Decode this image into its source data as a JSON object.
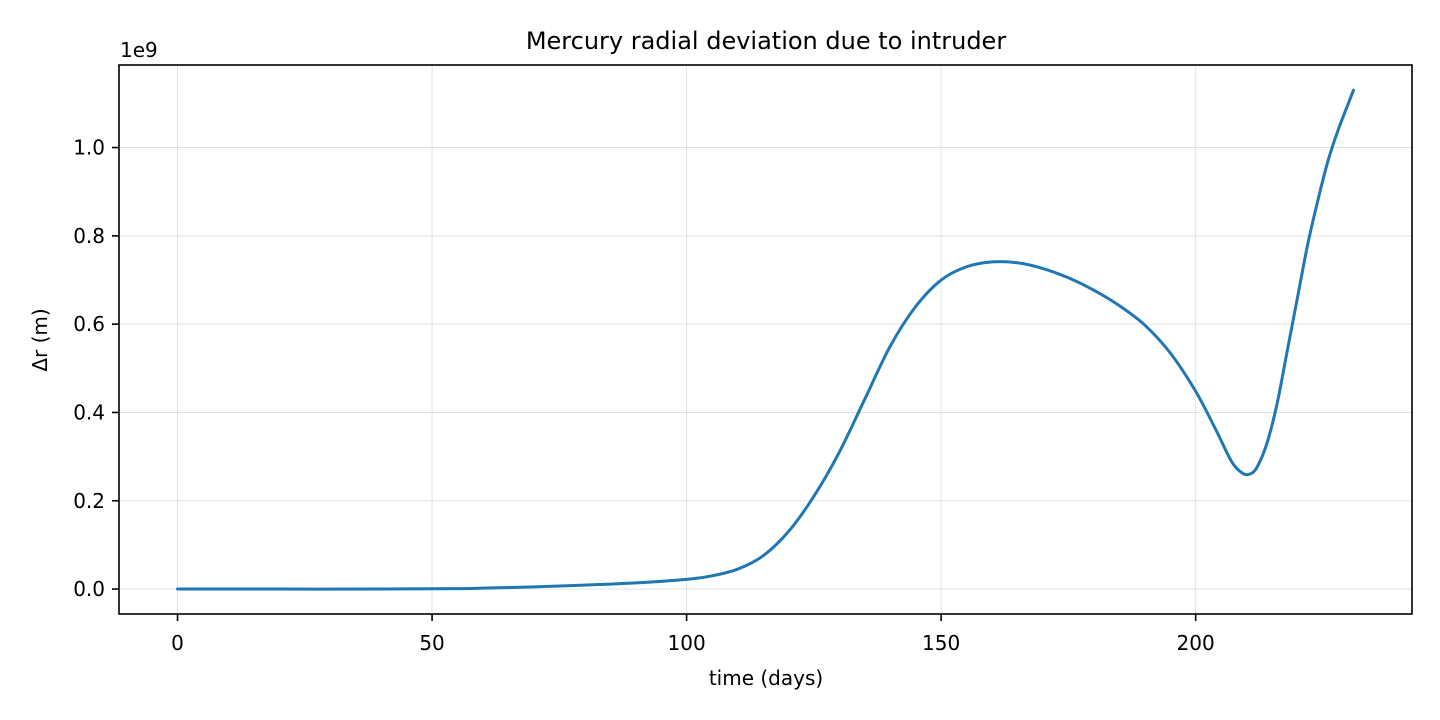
{
  "chart_data": {
    "type": "line",
    "title": "Mercury radial deviation due to intruder",
    "xlabel": "time (days)",
    "ylabel": "Δr (m)",
    "y_offset_label": "1e9",
    "xlim": [
      -11.5,
      242.5
    ],
    "ylim": [
      -0.0565,
      1.187
    ],
    "x_ticks": [
      0,
      50,
      100,
      150,
      200
    ],
    "x_tick_labels": [
      "0",
      "50",
      "100",
      "150",
      "200"
    ],
    "y_ticks": [
      0.0,
      0.2,
      0.4,
      0.6,
      0.8,
      1.0
    ],
    "y_tick_labels": [
      "0.0",
      "0.2",
      "0.4",
      "0.6",
      "0.8",
      "1.0"
    ],
    "grid": true,
    "series": [
      {
        "color": "#1f77b4",
        "points": [
          [
            0,
            0.0
          ],
          [
            20,
            0.0
          ],
          [
            40,
            0.0
          ],
          [
            55,
            0.001
          ],
          [
            60,
            0.002
          ],
          [
            70,
            0.005
          ],
          [
            80,
            0.009
          ],
          [
            90,
            0.014
          ],
          [
            100,
            0.022
          ],
          [
            105,
            0.03
          ],
          [
            110,
            0.045
          ],
          [
            115,
            0.075
          ],
          [
            120,
            0.13
          ],
          [
            125,
            0.21
          ],
          [
            130,
            0.31
          ],
          [
            135,
            0.43
          ],
          [
            140,
            0.55
          ],
          [
            145,
            0.64
          ],
          [
            150,
            0.7
          ],
          [
            155,
            0.73
          ],
          [
            160,
            0.741
          ],
          [
            165,
            0.739
          ],
          [
            170,
            0.726
          ],
          [
            175,
            0.705
          ],
          [
            180,
            0.677
          ],
          [
            185,
            0.642
          ],
          [
            190,
            0.598
          ],
          [
            195,
            0.535
          ],
          [
            200,
            0.448
          ],
          [
            204,
            0.36
          ],
          [
            207,
            0.29
          ],
          [
            209,
            0.264
          ],
          [
            210.5,
            0.26
          ],
          [
            212,
            0.275
          ],
          [
            214,
            0.33
          ],
          [
            216,
            0.42
          ],
          [
            218,
            0.54
          ],
          [
            220,
            0.66
          ],
          [
            222,
            0.78
          ],
          [
            224,
            0.88
          ],
          [
            226,
            0.97
          ],
          [
            228,
            1.04
          ],
          [
            230,
            1.1
          ],
          [
            231,
            1.13
          ]
        ]
      }
    ]
  }
}
